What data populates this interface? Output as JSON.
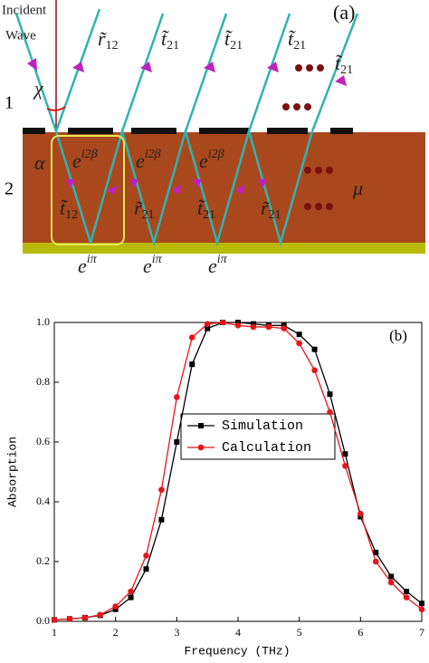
{
  "figure_a": {
    "panel_label": "(a)",
    "incident": [
      "Incident",
      "Wave"
    ],
    "angle_chi": "χ",
    "angle_alpha": "α",
    "layer_1": "1",
    "layer_2": "2",
    "mu": "μ",
    "top_coefficients": [
      {
        "base": "r̃",
        "sub": "12"
      },
      {
        "base": "t̃",
        "sub": "21"
      },
      {
        "base": "t̃",
        "sub": "21"
      },
      {
        "base": "t̃",
        "sub": "21"
      },
      {
        "base": "t̃",
        "sub": "21"
      }
    ],
    "phases": [
      {
        "base": "e",
        "sup": "i2β"
      },
      {
        "base": "e",
        "sup": "i2β"
      },
      {
        "base": "e",
        "sup": "i2β"
      }
    ],
    "inner_coefficients": [
      {
        "base": "t̃",
        "sub": "12"
      },
      {
        "base": "r̃",
        "sub": "21"
      },
      {
        "base": "t̃",
        "sub": "21"
      },
      {
        "base": "r̃",
        "sub": "21"
      }
    ],
    "bottom_phases": [
      {
        "base": "e",
        "sup": "iπ"
      },
      {
        "base": "e",
        "sup": "iπ"
      },
      {
        "base": "e",
        "sup": "iπ"
      }
    ]
  },
  "chart_data": {
    "type": "line",
    "panel_label": "(b)",
    "x_label": "Frequency (THz)",
    "y_label": "Absorption",
    "x": [
      1.0,
      1.25,
      1.5,
      1.75,
      2.0,
      2.25,
      2.5,
      2.75,
      3.0,
      3.25,
      3.5,
      3.75,
      4.0,
      4.25,
      4.5,
      4.75,
      5.0,
      5.25,
      5.5,
      5.75,
      6.0,
      6.25,
      6.5,
      6.75,
      7.0
    ],
    "series": [
      {
        "name": "Simulation",
        "color": "#000000",
        "marker": "square",
        "values": [
          0.005,
          0.008,
          0.012,
          0.02,
          0.04,
          0.08,
          0.175,
          0.34,
          0.6,
          0.86,
          0.98,
          1.0,
          1.0,
          0.995,
          0.99,
          0.99,
          0.96,
          0.91,
          0.76,
          0.56,
          0.35,
          0.23,
          0.15,
          0.1,
          0.06
        ]
      },
      {
        "name": "Calculation",
        "color": "#e8141b",
        "marker": "circle",
        "values": [
          0.005,
          0.008,
          0.012,
          0.022,
          0.05,
          0.1,
          0.22,
          0.44,
          0.75,
          0.95,
          0.995,
          1.0,
          0.99,
          0.985,
          0.985,
          0.98,
          0.93,
          0.84,
          0.7,
          0.52,
          0.36,
          0.2,
          0.13,
          0.08,
          0.04
        ]
      }
    ],
    "xlim": [
      1,
      7
    ],
    "ylim": [
      0,
      1
    ],
    "xticks": [
      1,
      2,
      3,
      4,
      5,
      6,
      7
    ],
    "yticks": [
      {
        "value": 0,
        "label": "0.0"
      },
      0.2,
      0.4,
      0.6,
      0.8,
      {
        "value": 1,
        "label": "1.0"
      }
    ],
    "grid": false
  }
}
